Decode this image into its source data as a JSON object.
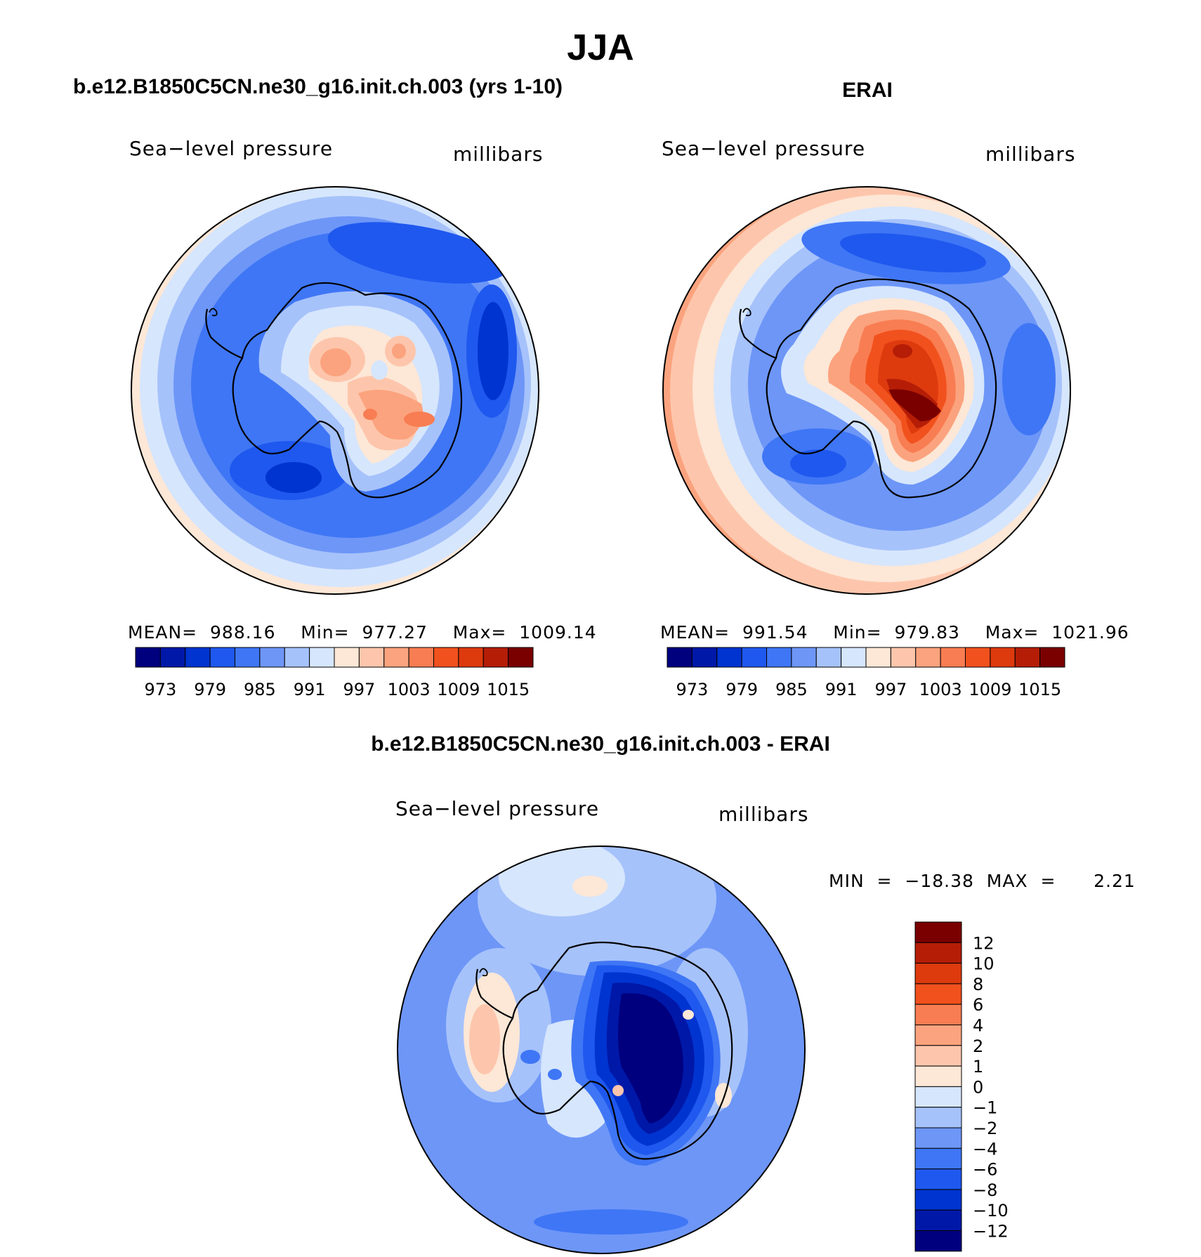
{
  "title": "JJA",
  "panels": [
    {
      "title": "b.e12.B1850C5CN.ne30_g16.init.ch.003 (yrs 1-10)",
      "variable": "Sea−level pressure",
      "units": "millibars",
      "stats": "MEAN=  988.16    Min=  977.27    Max=  1009.14"
    },
    {
      "title": "ERAI",
      "variable": "Sea−level pressure",
      "units": "millibars",
      "stats": "MEAN=  991.54    Min=  979.83    Max=  1021.96"
    },
    {
      "title": "b.e12.B1850C5CN.ne30_g16.init.ch.003 - ERAI",
      "variable": "Sea−level pressure",
      "units": "millibars",
      "stats": "MIN  =  −18.38  MAX  =      2.21"
    }
  ],
  "colorbar_top": {
    "colors": [
      "#00007f",
      "#0018a8",
      "#0034d0",
      "#1f58ee",
      "#3f76f5",
      "#6d96f7",
      "#a6c2fb",
      "#d6e6fd",
      "#fde7d6",
      "#fdc6ac",
      "#fba37e",
      "#f87d52",
      "#f1511d",
      "#dd3a0e",
      "#b51d06",
      "#7a0000"
    ],
    "labels": [
      "973",
      "979",
      "985",
      "991",
      "997",
      "1003",
      "1009",
      "1015"
    ]
  },
  "colorbar_diff": {
    "colors_top_to_bottom": [
      "#7a0000",
      "#b51d06",
      "#dd3a0e",
      "#f1511d",
      "#f87d52",
      "#fba37e",
      "#fdc6ac",
      "#fde7d6",
      "#d6e6fd",
      "#a6c2fb",
      "#6d96f7",
      "#3f76f5",
      "#1f58ee",
      "#0034d0",
      "#0018a8",
      "#00007f"
    ],
    "labels": [
      "12",
      "10",
      "8",
      "6",
      "4",
      "2",
      "1",
      "0",
      "−1",
      "−2",
      "−4",
      "−6",
      "−8",
      "−10",
      "−12"
    ]
  },
  "chart_data": [
    {
      "type": "heatmap",
      "projection": "south-polar stereographic",
      "title": "b.e12.B1850C5CN.ne30_g16.init.ch.003 (yrs 1-10)",
      "variable": "Sea−level pressure",
      "units": "millibars",
      "mean": 988.16,
      "min": 977.27,
      "max": 1009.14,
      "contour_levels": [
        973,
        976,
        979,
        982,
        985,
        988,
        991,
        994,
        997,
        1000,
        1003,
        1006,
        1009,
        1012,
        1015
      ]
    },
    {
      "type": "heatmap",
      "projection": "south-polar stereographic",
      "title": "ERAI",
      "variable": "Sea−level pressure",
      "units": "millibars",
      "mean": 991.54,
      "min": 979.83,
      "max": 1021.96,
      "contour_levels": [
        973,
        976,
        979,
        982,
        985,
        988,
        991,
        994,
        997,
        1000,
        1003,
        1006,
        1009,
        1012,
        1015
      ]
    },
    {
      "type": "heatmap",
      "projection": "south-polar stereographic",
      "title": "b.e12.B1850C5CN.ne30_g16.init.ch.003 - ERAI",
      "variable": "Sea−level pressure",
      "units": "millibars",
      "min": -18.38,
      "max": 2.21,
      "contour_levels": [
        -12,
        -10,
        -8,
        -6,
        -4,
        -2,
        -1,
        0,
        1,
        2,
        4,
        6,
        8,
        10,
        12
      ]
    }
  ]
}
